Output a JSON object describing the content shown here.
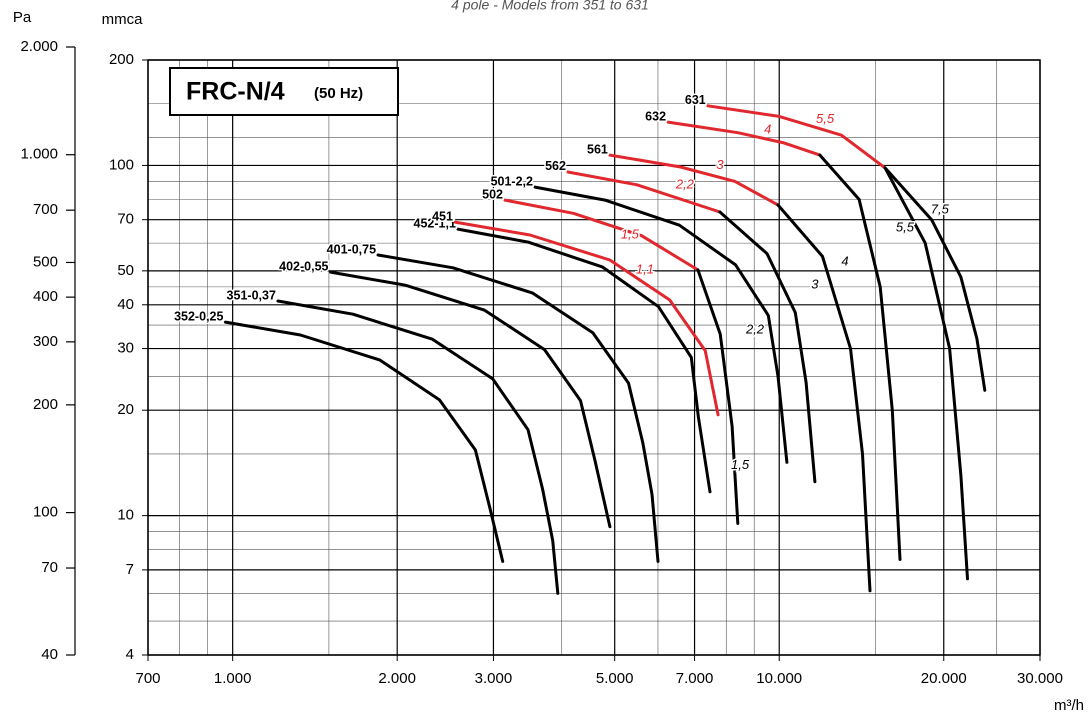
{
  "chart_data": {
    "type": "line",
    "subtitle": "4 pole - Models from 351 to 631",
    "inset_title": "FRC-N/4",
    "inset_subtitle": "(50 Hz)",
    "x_label": "m³/h",
    "y_label": "mmca",
    "y2_label": "Pa",
    "log_x": true,
    "log_y": true,
    "grid": true,
    "xlim": [
      700,
      30000
    ],
    "xticks": [
      700,
      {
        "value": 1000,
        "label": "1.000"
      },
      {
        "value": 2000,
        "label": "2.000"
      },
      {
        "value": 3000,
        "label": "3.000"
      },
      {
        "value": 5000,
        "label": "5.000"
      },
      {
        "value": 7000,
        "label": "7.000"
      },
      {
        "value": 10000,
        "label": "10.000"
      },
      {
        "value": 20000,
        "label": "20.000"
      },
      {
        "value": 30000,
        "label": "30.000"
      }
    ],
    "x_minor_grid": [
      800,
      900,
      1500,
      4000,
      6000,
      8000,
      9000,
      15000,
      25000
    ],
    "ylim": [
      4,
      200
    ],
    "yticks": [
      4,
      7,
      10,
      20,
      30,
      40,
      50,
      70,
      100,
      200
    ],
    "y_minor_grid": [
      5,
      6,
      8,
      9,
      15,
      25,
      35,
      45,
      60,
      80,
      90,
      120,
      150
    ],
    "y2lim": [
      40,
      2000
    ],
    "y2ticks": [
      40,
      70,
      100,
      200,
      300,
      400,
      500,
      700,
      {
        "value": 1000,
        "label": "1.000"
      },
      {
        "value": 2000,
        "label": "2.000"
      }
    ],
    "series": [
      {
        "name": "352-0,25",
        "x": [
          970,
          1330,
          1860,
          2390,
          2780,
          2960,
          3120
        ],
        "values": [
          35.7,
          32.8,
          27.8,
          21.4,
          15.4,
          10.4,
          7.4
        ],
        "segment_colors": [
          "#000000",
          "#000000",
          "#000000",
          "#000000",
          "#000000",
          "#000000"
        ]
      },
      {
        "name": "351-0,37",
        "x": [
          1210,
          1660,
          2320,
          2990,
          3470,
          3690,
          3850,
          3935
        ],
        "values": [
          41,
          37.6,
          31.9,
          24.6,
          17.6,
          11.9,
          8.5,
          6.0
        ],
        "segment_colors": [
          "#000000",
          "#000000",
          "#000000",
          "#000000",
          "#000000",
          "#000000",
          "#000000"
        ]
      },
      {
        "name": "402-0,55",
        "x": [
          1510,
          2070,
          2890,
          3720,
          4330,
          4600,
          4900
        ],
        "values": [
          49.6,
          45.5,
          38.6,
          29.8,
          21.3,
          14.4,
          9.3
        ],
        "segment_colors": [
          "#000000",
          "#000000",
          "#000000",
          "#000000",
          "#000000",
          "#000000"
        ]
      },
      {
        "name": "401-0,75",
        "x": [
          1845,
          2530,
          3540,
          4560,
          5300,
          5630,
          5850,
          6000
        ],
        "values": [
          55.5,
          51,
          43.2,
          33.3,
          23.9,
          16.1,
          11.5,
          7.4
        ],
        "segment_colors": [
          "#000000",
          "#000000",
          "#000000",
          "#000000",
          "#000000",
          "#000000",
          "#000000"
        ]
      },
      {
        "name": "452-1,1",
        "x": [
          2583,
          3470,
          4745,
          6013,
          6904,
          7113,
          7470
        ],
        "values": [
          65.8,
          60.4,
          51.3,
          39.5,
          28.3,
          19.1,
          11.7
        ],
        "segment_colors": [
          "#000000",
          "#000000",
          "#000000",
          "#000000",
          "#000000",
          "#000000"
        ]
      },
      {
        "name": "451",
        "x": [
          2551,
          3500,
          4898,
          6301,
          7321,
          7730
        ],
        "values": [
          68.9,
          63.3,
          53.7,
          41.3,
          29.6,
          19.4
        ],
        "segment_colors": [
          "#e0282e",
          "#e0282e",
          "#e0282e",
          "#e0282e",
          "#e0282e"
        ]
      },
      {
        "name": "502",
        "x": [
          3150,
          4200,
          5600,
          7100,
          7800,
          8200,
          8400
        ],
        "values": [
          79.6,
          73,
          63,
          50.3,
          33,
          18,
          9.5
        ],
        "segment_colors": [
          "#e0282e",
          "#e0282e",
          "#e0282e",
          "#000000",
          "#000000",
          "#000000"
        ]
      },
      {
        "name": "501-2,2",
        "x": [
          3574,
          4800,
          6566,
          8320,
          9550,
          9950,
          10330
        ],
        "values": [
          86.7,
          79.6,
          67.5,
          52,
          37.3,
          25,
          14.2
        ],
        "segment_colors": [
          "#000000",
          "#000000",
          "#000000",
          "#000000",
          "#000000",
          "#000000"
        ]
      },
      {
        "name": "562",
        "x": [
          4106,
          5500,
          7790,
          9500,
          10700,
          11200,
          11620
        ],
        "values": [
          95.8,
          88,
          73.6,
          56,
          38,
          24,
          12.5
        ],
        "segment_colors": [
          "#e0282e",
          "#e0282e",
          "#000000",
          "#000000",
          "#000000",
          "#000000"
        ]
      },
      {
        "name": "561",
        "x": [
          4900,
          6600,
          8300,
          9950,
          12000,
          13500,
          14200,
          14660
        ],
        "values": [
          107,
          99,
          90,
          77.1,
          55,
          30,
          15,
          6.1
        ],
        "segment_colors": [
          "#e0282e",
          "#e0282e",
          "#e0282e",
          "#000000",
          "#000000",
          "#000000",
          "#000000"
        ]
      },
      {
        "name": "632",
        "x": [
          6260,
          8400,
          10200,
          11870,
          14000,
          15300,
          16100,
          16630
        ],
        "values": [
          133,
          124,
          116,
          107,
          80,
          45,
          20,
          7.5
        ],
        "segment_colors": [
          "#e0282e",
          "#e0282e",
          "#e0282e",
          "#000000",
          "#000000",
          "#000000",
          "#000000"
        ]
      },
      {
        "name": "631",
        "x": [
          7400,
          10000,
          13000,
          15620,
          19000,
          21500,
          23000,
          23780
        ],
        "values": [
          148,
          138,
          122,
          98.4,
          70,
          48,
          32,
          22.8
        ],
        "segment_colors": [
          "#e0282e",
          "#e0282e",
          "#e0282e",
          "#000000",
          "#000000",
          "#000000",
          "#000000"
        ]
      },
      {
        "x": [
          15620,
          18500,
          20500,
          21500,
          22100
        ],
        "values": [
          98.4,
          60,
          30,
          13,
          6.6
        ],
        "segment_colors": [
          "#000000",
          "#000000",
          "#000000",
          "#000000"
        ]
      }
    ],
    "annotations": [
      {
        "text": "5,5",
        "x": 12130,
        "y": 135,
        "color": "#e0282e"
      },
      {
        "text": "4",
        "x": 9530,
        "y": 126,
        "color": "#e0282e"
      },
      {
        "text": "3",
        "x": 7790,
        "y": 100,
        "color": "#e0282e"
      },
      {
        "text": "2,2",
        "x": 6720,
        "y": 88,
        "color": "#e0282e"
      },
      {
        "text": "1,5",
        "x": 5330,
        "y": 63.3,
        "color": "#e0282e"
      },
      {
        "text": "1,1",
        "x": 5680,
        "y": 50.3,
        "color": "#e0282e"
      },
      {
        "text": "7,5",
        "x": 19670,
        "y": 74.6,
        "color": "#000000"
      },
      {
        "text": "5,5",
        "x": 16980,
        "y": 66.2,
        "color": "#000000"
      },
      {
        "text": "4",
        "x": 13190,
        "y": 53,
        "color": "#000000"
      },
      {
        "text": "3",
        "x": 11620,
        "y": 45.6,
        "color": "#000000"
      },
      {
        "text": "2,2",
        "x": 9030,
        "y": 33.9,
        "color": "#000000"
      },
      {
        "text": "1,5",
        "x": 8480,
        "y": 13.9,
        "color": "#000000"
      }
    ]
  }
}
